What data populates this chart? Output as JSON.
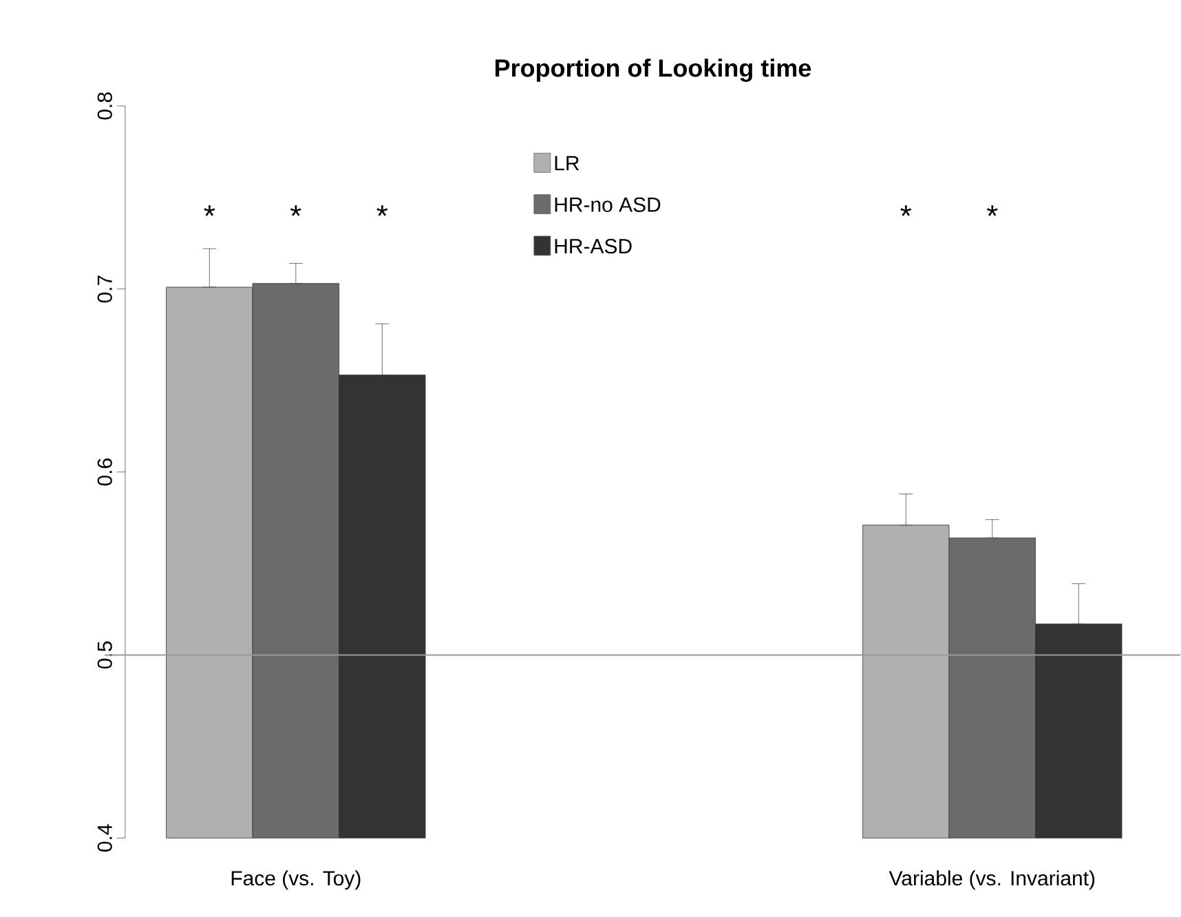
{
  "chart_data": {
    "type": "bar",
    "title": "Proportion of Looking time",
    "categories": [
      "Face (vs. Toy)",
      "Variable (vs. Invariant)"
    ],
    "series": [
      {
        "name": "LR",
        "color": "#b0b0b0",
        "values": [
          0.701,
          0.571
        ],
        "errors": [
          [
            0.701,
            0.722
          ],
          [
            0.571,
            0.588
          ]
        ]
      },
      {
        "name": "HR-no ASD",
        "color": "#6b6b6b",
        "values": [
          0.703,
          0.564
        ],
        "errors": [
          [
            0.703,
            0.714
          ],
          [
            0.564,
            0.574
          ]
        ]
      },
      {
        "name": "HR-ASD",
        "color": "#333333",
        "values": [
          0.653,
          0.517
        ],
        "errors": [
          [
            0.653,
            0.681
          ],
          [
            0.517,
            0.539
          ]
        ]
      }
    ],
    "ylim": [
      0.4,
      0.8
    ],
    "yticks": [
      0.4,
      0.5,
      0.6,
      0.7,
      0.8
    ],
    "ref_lines": [
      {
        "axis": "y",
        "value": 0.5,
        "color": "#999999"
      }
    ],
    "annotations": [
      "*",
      "*",
      "*",
      "*",
      "*"
    ],
    "legend": "top",
    "grid": false
  }
}
